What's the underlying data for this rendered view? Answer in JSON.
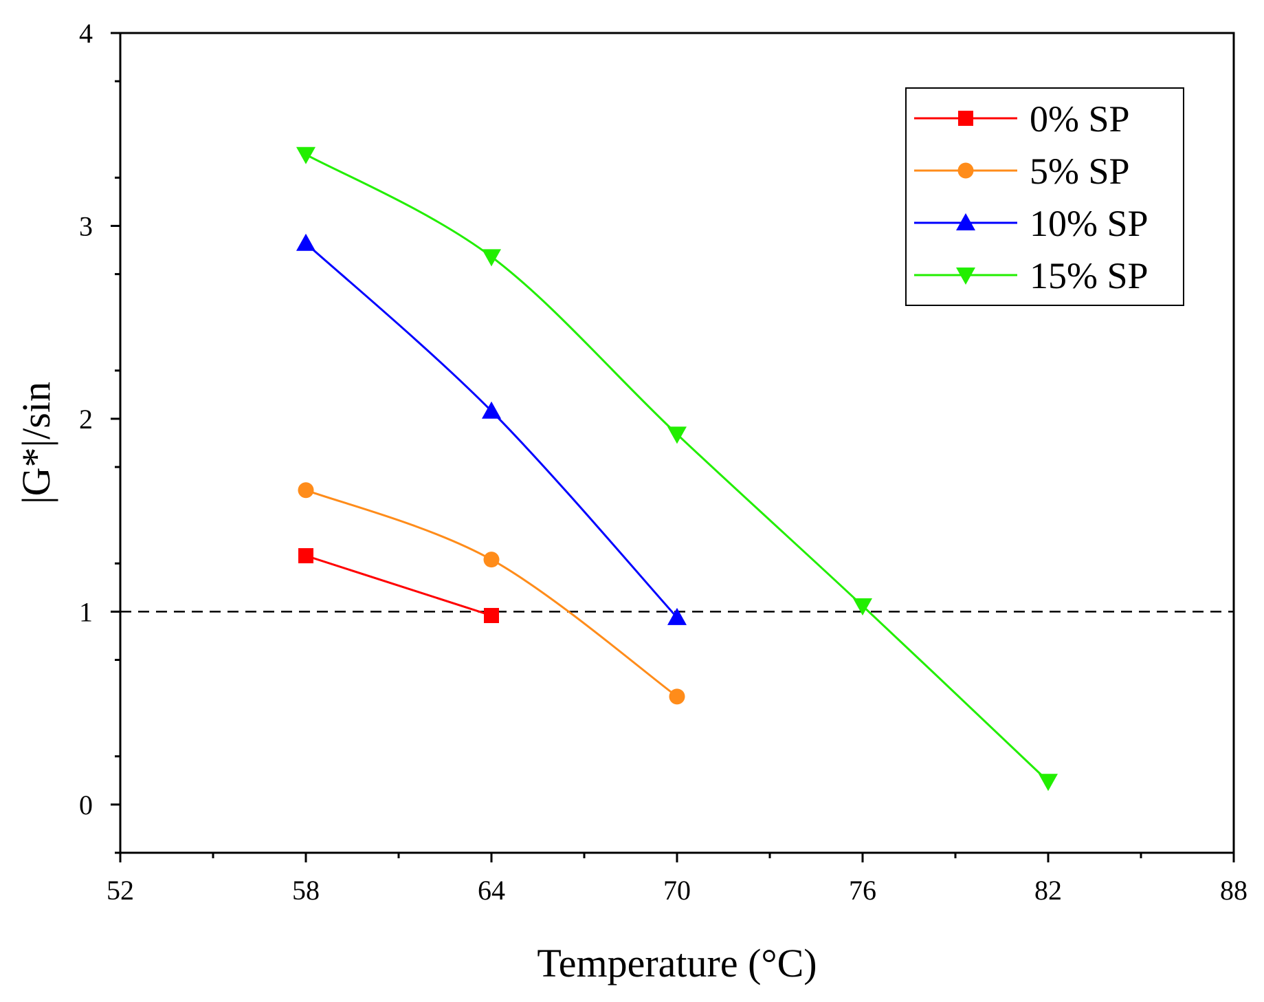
{
  "chart_data": {
    "type": "line",
    "title": "",
    "xlabel": "Temperature (°C)",
    "ylabel": "|G*|/sin",
    "xlim": [
      52,
      88
    ],
    "ylim": [
      -0.25,
      4
    ],
    "xticks": [
      52,
      58,
      64,
      70,
      76,
      82,
      88
    ],
    "xtick_labels": [
      "52",
      "58",
      "64",
      "70",
      "76",
      "82",
      "88"
    ],
    "yticks": [
      0,
      1,
      2,
      3,
      4
    ],
    "ytick_labels": [
      "0",
      "1",
      "2",
      "3",
      "4"
    ],
    "reference_line": {
      "y": 1,
      "style": "dashed",
      "color": "#000000"
    },
    "legend": {
      "position": "top-right"
    },
    "grid": false,
    "series": [
      {
        "name": "0% SP",
        "color": "#ff0000",
        "marker": "square",
        "x": [
          58,
          64
        ],
        "values": [
          1.29,
          0.98
        ]
      },
      {
        "name": "5% SP",
        "color": "#ff8c1a",
        "marker": "circle",
        "x": [
          58,
          64,
          70
        ],
        "values": [
          1.63,
          1.27,
          0.56
        ]
      },
      {
        "name": "10% SP",
        "color": "#0000ff",
        "marker": "triangle-up",
        "x": [
          58,
          64,
          70
        ],
        "values": [
          2.91,
          2.04,
          0.97
        ]
      },
      {
        "name": "15% SP",
        "color": "#22ee00",
        "marker": "triangle-down",
        "x": [
          58,
          64,
          70,
          76,
          82
        ],
        "values": [
          3.37,
          2.84,
          1.92,
          1.03,
          0.12
        ]
      }
    ]
  }
}
